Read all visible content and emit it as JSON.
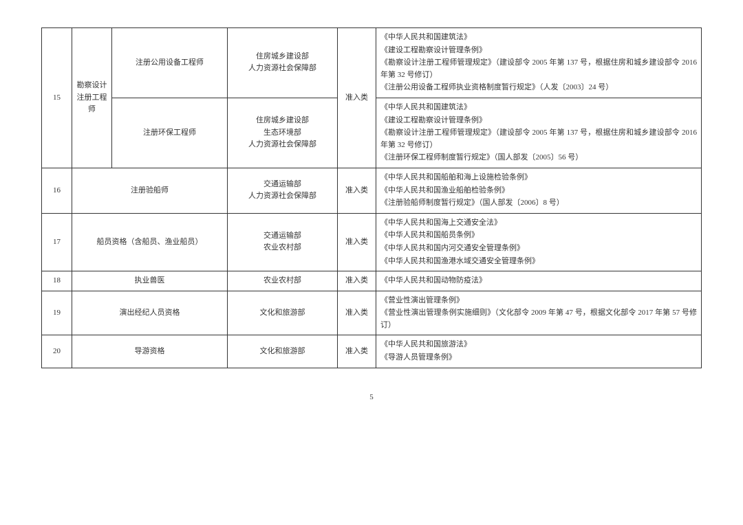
{
  "page_number": "5",
  "colors": {
    "border": "#333333",
    "text": "#333333",
    "bg": "#ffffff"
  },
  "fontsize_pt": 11,
  "rows": [
    {
      "num": "15",
      "category": "勘察设计注册工程师",
      "type": "准入类",
      "subrows": [
        {
          "qual": "注册公用设备工程师",
          "dept": [
            "住房城乡建设部",
            "人力资源社会保障部"
          ],
          "basis": [
            "《中华人民共和国建筑法》",
            "《建设工程勘察设计管理条例》",
            "《勘察设计注册工程师管理规定》（建设部令 2005 年第 137 号，根据住房和城乡建设部令 2016 年第 32 号修订）",
            "《注册公用设备工程师执业资格制度暂行规定》（人发〔2003〕24 号）"
          ]
        },
        {
          "qual": "注册环保工程师",
          "dept": [
            "住房城乡建设部",
            "生态环境部",
            "人力资源社会保障部"
          ],
          "basis": [
            "《中华人民共和国建筑法》",
            "《建设工程勘察设计管理条例》",
            "《勘察设计注册工程师管理规定》（建设部令 2005 年第 137 号，根据住房和城乡建设部令 2016 年第 32 号修订）",
            "《注册环保工程师制度暂行规定》（国人部发〔2005〕56 号）"
          ]
        }
      ]
    },
    {
      "num": "16",
      "qual": "注册验船师",
      "dept": [
        "交通运输部",
        "人力资源社会保障部"
      ],
      "type": "准入类",
      "basis": [
        "《中华人民共和国船舶和海上设施检验条例》",
        "《中华人民共和国渔业船舶检验条例》",
        "《注册验船师制度暂行规定》（国人部发〔2006〕8 号）"
      ]
    },
    {
      "num": "17",
      "qual": "船员资格（含船员、渔业船员）",
      "dept": [
        "交通运输部",
        "农业农村部"
      ],
      "type": "准入类",
      "basis": [
        "《中华人民共和国海上交通安全法》",
        "《中华人民共和国船员条例》",
        "《中华人民共和国内河交通安全管理条例》",
        "《中华人民共和国渔港水域交通安全管理条例》"
      ]
    },
    {
      "num": "18",
      "qual": "执业兽医",
      "dept": [
        "农业农村部"
      ],
      "type": "准入类",
      "basis": [
        "《中华人民共和国动物防疫法》"
      ]
    },
    {
      "num": "19",
      "qual": "演出经纪人员资格",
      "dept": [
        "文化和旅游部"
      ],
      "type": "准入类",
      "basis": [
        "《营业性演出管理条例》",
        "《营业性演出管理条例实施细则》（文化部令 2009 年第 47 号，根据文化部令 2017 年第 57 号修订）"
      ]
    },
    {
      "num": "20",
      "qual": "导游资格",
      "dept": [
        "文化和旅游部"
      ],
      "type": "准入类",
      "basis": [
        "《中华人民共和国旅游法》",
        "《导游人员管理条例》"
      ]
    }
  ]
}
